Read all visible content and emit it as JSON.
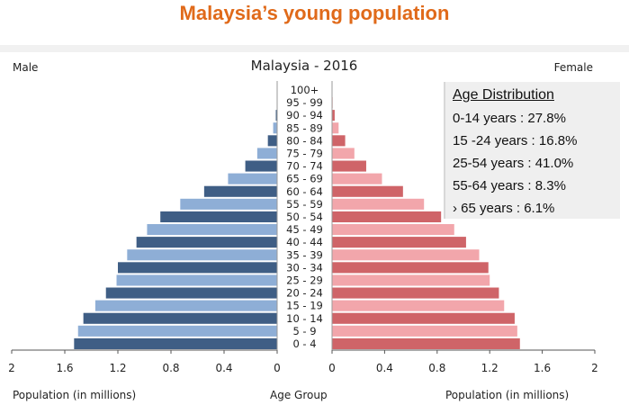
{
  "headline": "Malaysia’s young population",
  "labels": {
    "male": "Male",
    "female": "Female",
    "chart_title": "Malaysia - 2016",
    "x_left": "Population (in millions)",
    "x_center": "Age Group",
    "x_right": "Population (in millions)"
  },
  "infobox": {
    "title": "Age Distribution",
    "rows": [
      "0-14 years  : 27.8%",
      "15 -24 years : 16.8%",
      "25-54 years : 41.0%",
      "55-64 years : 8.3%",
      "› 65 years   : 6.1%"
    ]
  },
  "colors": {
    "male_dark": "#3f5e85",
    "male_light": "#8eaed6",
    "female_dark": "#cf6468",
    "female_light": "#f2a6ab",
    "headline": "#e06a1a"
  },
  "chart_data": {
    "type": "bar",
    "orientation": "horizontal-pyramid",
    "title": "Malaysia - 2016",
    "xlabel_left": "Population (in millions)",
    "xlabel_center": "Age Group",
    "xlabel_right": "Population (in millions)",
    "xlim": [
      0,
      2
    ],
    "x_ticks_left": [
      "2",
      "1.6",
      "1.2",
      "0.8",
      "0.4",
      "0"
    ],
    "x_ticks_right": [
      "0",
      "0.4",
      "0.8",
      "1.2",
      "1.6",
      "2"
    ],
    "categories": [
      "0 - 4",
      "5 - 9",
      "10 - 14",
      "15 - 19",
      "20 - 24",
      "25 - 29",
      "30 - 34",
      "35 - 39",
      "40 - 44",
      "45 - 49",
      "50 - 54",
      "55 - 59",
      "60 - 64",
      "65 - 69",
      "70 - 74",
      "75 - 79",
      "80 - 84",
      "85 - 89",
      "90 - 94",
      "95 - 99",
      "100+"
    ],
    "series": [
      {
        "name": "Male",
        "values": [
          1.53,
          1.5,
          1.46,
          1.37,
          1.29,
          1.21,
          1.2,
          1.13,
          1.06,
          0.98,
          0.88,
          0.73,
          0.55,
          0.37,
          0.24,
          0.15,
          0.07,
          0.03,
          0.01,
          0.003,
          0.001
        ]
      },
      {
        "name": "Female",
        "values": [
          1.43,
          1.41,
          1.39,
          1.31,
          1.27,
          1.2,
          1.19,
          1.12,
          1.02,
          0.93,
          0.83,
          0.7,
          0.54,
          0.38,
          0.26,
          0.17,
          0.1,
          0.05,
          0.02,
          0.005,
          0.001
        ]
      }
    ],
    "legend": "none",
    "grid": false
  }
}
